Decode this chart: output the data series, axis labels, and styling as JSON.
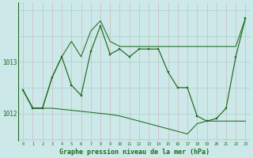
{
  "xlabel": "Graphe pression niveau de la mer (hPa)",
  "bg_color": "#cce8e8",
  "grid_color_v": "#b8d4d4",
  "grid_color_h": "#aacfcf",
  "line_color": "#1e6b1e",
  "hours": [
    0,
    1,
    2,
    3,
    4,
    5,
    6,
    7,
    8,
    9,
    10,
    11,
    12,
    13,
    14,
    15,
    16,
    17,
    18,
    19,
    20,
    21,
    22,
    23
  ],
  "series_main": [
    1012.45,
    1012.1,
    1012.1,
    1012.7,
    1013.1,
    1012.55,
    1012.35,
    1013.2,
    1013.7,
    1013.15,
    1013.25,
    1013.1,
    1013.25,
    1013.25,
    1013.25,
    1012.8,
    1012.5,
    1012.5,
    1011.95,
    1011.85,
    1011.9,
    1012.1,
    1013.1,
    1013.85
  ],
  "series_upper": [
    1012.45,
    1012.1,
    1012.1,
    1012.7,
    1013.1,
    1013.4,
    1013.1,
    1013.6,
    1013.8,
    1013.4,
    1013.3,
    1013.3,
    1013.3,
    1013.3,
    1013.3,
    1013.3,
    1013.3,
    1013.3,
    1013.3,
    1013.3,
    1013.3,
    1013.3,
    1013.3,
    1013.85
  ],
  "series_lower": [
    1012.45,
    1012.1,
    1012.1,
    1012.1,
    1012.08,
    1012.06,
    1012.04,
    1012.02,
    1012.0,
    1011.98,
    1011.95,
    1011.9,
    1011.85,
    1011.8,
    1011.75,
    1011.7,
    1011.65,
    1011.6,
    1011.8,
    1011.85,
    1011.85,
    1011.85,
    1011.85,
    1011.85
  ],
  "ylim": [
    1011.45,
    1014.15
  ],
  "yticks": [
    1012.0,
    1013.0
  ],
  "xlim": [
    -0.5,
    23.5
  ],
  "xticks": [
    0,
    1,
    2,
    3,
    4,
    5,
    6,
    7,
    8,
    9,
    10,
    11,
    12,
    13,
    14,
    15,
    16,
    17,
    18,
    19,
    20,
    21,
    22,
    23
  ]
}
